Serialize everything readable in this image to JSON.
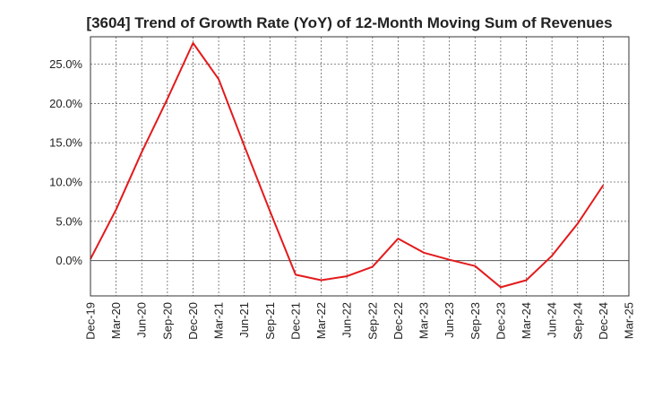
{
  "chart_data": {
    "type": "line",
    "title": "[3604]  Trend of Growth Rate (YoY) of 12-Month Moving Sum of Revenues",
    "xlabel": "",
    "ylabel": "",
    "x_ticks": [
      "Dec-19",
      "Mar-20",
      "Jun-20",
      "Sep-20",
      "Dec-20",
      "Mar-21",
      "Jun-21",
      "Sep-21",
      "Dec-21",
      "Mar-22",
      "Jun-22",
      "Sep-22",
      "Dec-22",
      "Mar-23",
      "Jun-23",
      "Sep-23",
      "Dec-23",
      "Mar-24",
      "Jun-24",
      "Sep-24",
      "Dec-24",
      "Mar-25"
    ],
    "y_ticks": [
      0,
      5,
      10,
      15,
      20,
      25
    ],
    "y_tick_labels": [
      "0.0%",
      "5.0%",
      "10.0%",
      "15.0%",
      "20.0%",
      "25.0%"
    ],
    "ylim": [
      -4.5,
      28.5
    ],
    "grid": true,
    "line_color": "#e31a1c",
    "series": [
      {
        "values": [
          0.2,
          6.5,
          13.8,
          20.6,
          27.7,
          23.1,
          14.6,
          6.3,
          -1.8,
          -2.5,
          -2.0,
          -0.8,
          2.8,
          1.0,
          0.1,
          -0.7,
          -3.4,
          -2.5,
          0.6,
          4.7,
          9.6
        ]
      }
    ]
  }
}
